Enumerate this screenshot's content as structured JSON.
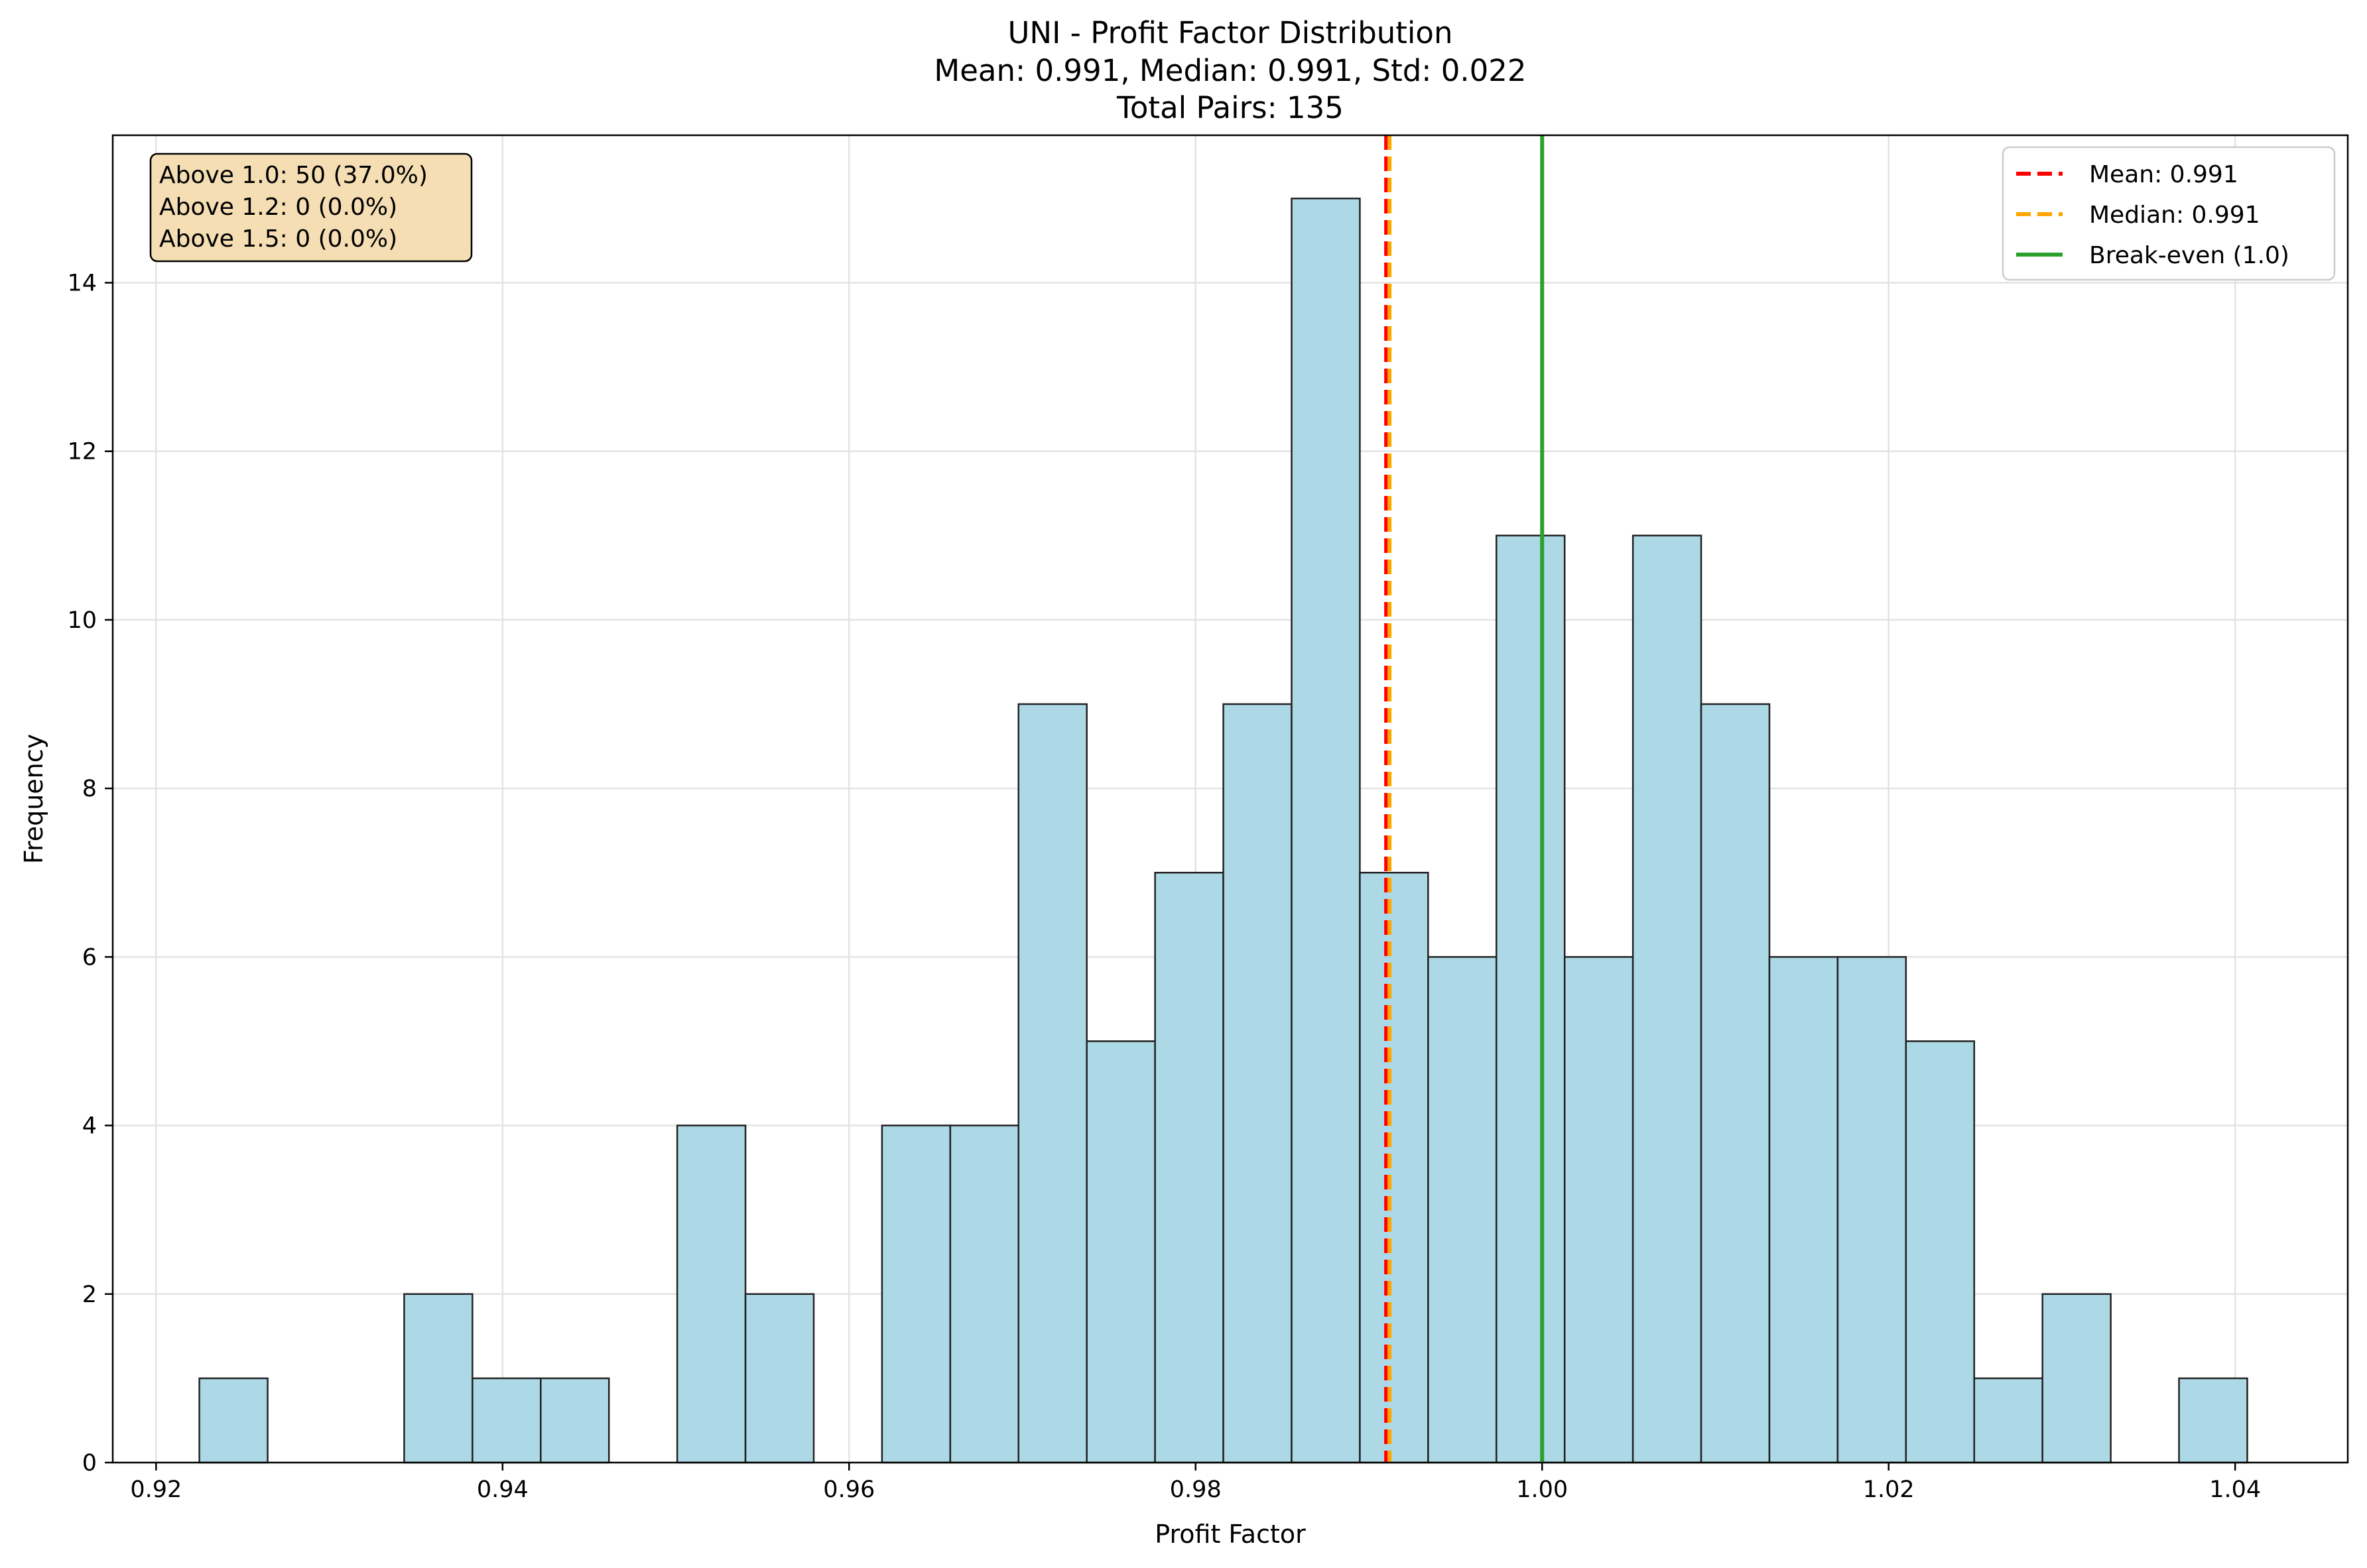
{
  "chart_data": {
    "type": "bar",
    "title_lines": [
      "UNI - Profit Factor Distribution",
      "Mean: 0.991, Median: 0.991, Std: 0.022",
      "Total Pairs: 135"
    ],
    "xlabel": "Profit Factor",
    "ylabel": "Frequency",
    "xlim": [
      0.9175,
      1.0465
    ],
    "ylim": [
      0,
      15.75
    ],
    "xticks": [
      0.92,
      0.94,
      0.96,
      0.98,
      1.0,
      1.02,
      1.04
    ],
    "xtick_labels": [
      "0.92",
      "0.94",
      "0.96",
      "0.98",
      "1.00",
      "1.02",
      "1.04"
    ],
    "yticks": [
      0,
      2,
      4,
      6,
      8,
      10,
      12,
      14
    ],
    "ytick_labels": [
      "0",
      "2",
      "4",
      "6",
      "8",
      "10",
      "12",
      "14"
    ],
    "grid": true,
    "bin_start": 0.9225,
    "bin_width": 0.00394,
    "counts": [
      1,
      0,
      0,
      2,
      1,
      1,
      0,
      4,
      2,
      0,
      4,
      4,
      9,
      5,
      7,
      9,
      15,
      7,
      6,
      11,
      6,
      11,
      9,
      6,
      6,
      5,
      1,
      2,
      0,
      1
    ],
    "bar_color": "#add8e6",
    "bar_edge_color": "#222222",
    "reference_lines": [
      {
        "name": "Mean: 0.991",
        "x": 0.991,
        "color": "#ff0000",
        "style": "dashed"
      },
      {
        "name": "Median: 0.991",
        "x": 0.991,
        "color": "#ffa500",
        "style": "dashed"
      },
      {
        "name": "Break-even (1.0)",
        "x": 1.0,
        "color": "#2ca02c",
        "style": "solid"
      }
    ],
    "legend_position": "top-right",
    "stats_box": {
      "lines": [
        "Above 1.0: 50 (37.0%)",
        "Above 1.2: 0 (0.0%)",
        "Above 1.5: 0 (0.0%)"
      ],
      "background": "#f5deb3",
      "position": "top-left"
    }
  }
}
